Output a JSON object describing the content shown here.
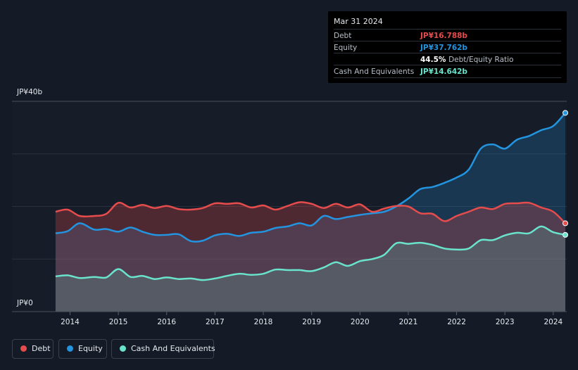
{
  "tooltip": {
    "date": "Mar 31 2024",
    "rows": [
      {
        "label": "Debt",
        "value": "JP¥16.788b",
        "color": "#e64c4c"
      },
      {
        "label": "Equity",
        "value": "JP¥37.762b",
        "color": "#2394df"
      },
      {
        "label": "",
        "value": "44.5%",
        "sub": "Debt/Equity Ratio",
        "color": "#ffffff"
      },
      {
        "label": "Cash And Equivalents",
        "value": "JP¥14.642b",
        "color": "#6ae3cd"
      }
    ]
  },
  "legend": [
    {
      "label": "Debt",
      "color": "#e64c4c"
    },
    {
      "label": "Equity",
      "color": "#2394df"
    },
    {
      "label": "Cash And Equivalents",
      "color": "#6ae3cd"
    }
  ],
  "chart_data": {
    "type": "area",
    "title": "",
    "xlabel": "",
    "ylabel": "",
    "y_unit": "JP¥b",
    "ylim": [
      0,
      40
    ],
    "y_tick_labels": [
      "JP¥0",
      "JP¥40b"
    ],
    "x_range": [
      2013.25,
      2024.25
    ],
    "x_tick_labels": [
      "2014",
      "2015",
      "2016",
      "2017",
      "2018",
      "2019",
      "2020",
      "2021",
      "2022",
      "2023",
      "2024"
    ],
    "series": [
      {
        "name": "Debt",
        "color": "#e64c4c",
        "points": [
          [
            2013.7,
            19.0
          ],
          [
            2013.95,
            19.4
          ],
          [
            2014.2,
            18.2
          ],
          [
            2014.5,
            18.2
          ],
          [
            2014.75,
            18.6
          ],
          [
            2015.0,
            20.7
          ],
          [
            2015.25,
            19.8
          ],
          [
            2015.5,
            20.3
          ],
          [
            2015.75,
            19.7
          ],
          [
            2016.0,
            20.1
          ],
          [
            2016.25,
            19.5
          ],
          [
            2016.5,
            19.4
          ],
          [
            2016.75,
            19.7
          ],
          [
            2017.0,
            20.6
          ],
          [
            2017.25,
            20.5
          ],
          [
            2017.5,
            20.6
          ],
          [
            2017.75,
            19.8
          ],
          [
            2018.0,
            20.2
          ],
          [
            2018.25,
            19.4
          ],
          [
            2018.5,
            20.1
          ],
          [
            2018.75,
            20.8
          ],
          [
            2019.0,
            20.5
          ],
          [
            2019.25,
            19.7
          ],
          [
            2019.5,
            20.5
          ],
          [
            2019.75,
            19.8
          ],
          [
            2020.0,
            20.4
          ],
          [
            2020.25,
            19.0
          ],
          [
            2020.5,
            19.6
          ],
          [
            2020.75,
            20.1
          ],
          [
            2021.0,
            20.0
          ],
          [
            2021.25,
            18.7
          ],
          [
            2021.5,
            18.6
          ],
          [
            2021.75,
            17.2
          ],
          [
            2022.0,
            18.2
          ],
          [
            2022.25,
            19.0
          ],
          [
            2022.5,
            19.8
          ],
          [
            2022.75,
            19.5
          ],
          [
            2023.0,
            20.5
          ],
          [
            2023.25,
            20.6
          ],
          [
            2023.5,
            20.7
          ],
          [
            2023.75,
            19.8
          ],
          [
            2024.0,
            19.0
          ],
          [
            2024.25,
            16.8
          ]
        ]
      },
      {
        "name": "Equity",
        "color": "#2394df",
        "points": [
          [
            2013.7,
            14.9
          ],
          [
            2013.95,
            15.3
          ],
          [
            2014.2,
            16.8
          ],
          [
            2014.5,
            15.6
          ],
          [
            2014.75,
            15.7
          ],
          [
            2015.0,
            15.2
          ],
          [
            2015.25,
            16.0
          ],
          [
            2015.5,
            15.2
          ],
          [
            2015.75,
            14.6
          ],
          [
            2016.0,
            14.6
          ],
          [
            2016.25,
            14.7
          ],
          [
            2016.5,
            13.4
          ],
          [
            2016.75,
            13.5
          ],
          [
            2017.0,
            14.5
          ],
          [
            2017.25,
            14.8
          ],
          [
            2017.5,
            14.4
          ],
          [
            2017.75,
            15.0
          ],
          [
            2018.0,
            15.2
          ],
          [
            2018.25,
            15.9
          ],
          [
            2018.5,
            16.2
          ],
          [
            2018.75,
            16.8
          ],
          [
            2019.0,
            16.4
          ],
          [
            2019.25,
            18.2
          ],
          [
            2019.5,
            17.6
          ],
          [
            2019.75,
            18.0
          ],
          [
            2020.0,
            18.4
          ],
          [
            2020.25,
            18.7
          ],
          [
            2020.5,
            19.0
          ],
          [
            2020.75,
            20.0
          ],
          [
            2021.0,
            21.5
          ],
          [
            2021.25,
            23.3
          ],
          [
            2021.5,
            23.7
          ],
          [
            2021.75,
            24.5
          ],
          [
            2022.0,
            25.5
          ],
          [
            2022.25,
            27.0
          ],
          [
            2022.5,
            31.0
          ],
          [
            2022.75,
            31.8
          ],
          [
            2023.0,
            31.0
          ],
          [
            2023.25,
            32.7
          ],
          [
            2023.5,
            33.4
          ],
          [
            2023.75,
            34.5
          ],
          [
            2024.0,
            35.3
          ],
          [
            2024.25,
            37.8
          ]
        ]
      },
      {
        "name": "Cash And Equivalents",
        "color": "#6ae3cd",
        "points": [
          [
            2013.7,
            6.7
          ],
          [
            2013.95,
            6.9
          ],
          [
            2014.2,
            6.4
          ],
          [
            2014.5,
            6.6
          ],
          [
            2014.75,
            6.5
          ],
          [
            2015.0,
            8.1
          ],
          [
            2015.25,
            6.6
          ],
          [
            2015.5,
            6.8
          ],
          [
            2015.75,
            6.2
          ],
          [
            2016.0,
            6.5
          ],
          [
            2016.25,
            6.2
          ],
          [
            2016.5,
            6.3
          ],
          [
            2016.75,
            6.0
          ],
          [
            2017.0,
            6.3
          ],
          [
            2017.25,
            6.8
          ],
          [
            2017.5,
            7.2
          ],
          [
            2017.75,
            7.0
          ],
          [
            2018.0,
            7.2
          ],
          [
            2018.25,
            8.0
          ],
          [
            2018.5,
            7.9
          ],
          [
            2018.75,
            7.9
          ],
          [
            2019.0,
            7.7
          ],
          [
            2019.25,
            8.4
          ],
          [
            2019.5,
            9.4
          ],
          [
            2019.75,
            8.7
          ],
          [
            2020.0,
            9.6
          ],
          [
            2020.25,
            10.0
          ],
          [
            2020.5,
            10.8
          ],
          [
            2020.75,
            13.0
          ],
          [
            2021.0,
            12.9
          ],
          [
            2021.25,
            13.1
          ],
          [
            2021.5,
            12.7
          ],
          [
            2021.75,
            12.0
          ],
          [
            2022.0,
            11.8
          ],
          [
            2022.25,
            12.0
          ],
          [
            2022.5,
            13.6
          ],
          [
            2022.75,
            13.6
          ],
          [
            2023.0,
            14.5
          ],
          [
            2023.25,
            15.0
          ],
          [
            2023.5,
            14.9
          ],
          [
            2023.75,
            16.2
          ],
          [
            2024.0,
            15.1
          ],
          [
            2024.25,
            14.6
          ]
        ]
      }
    ]
  }
}
